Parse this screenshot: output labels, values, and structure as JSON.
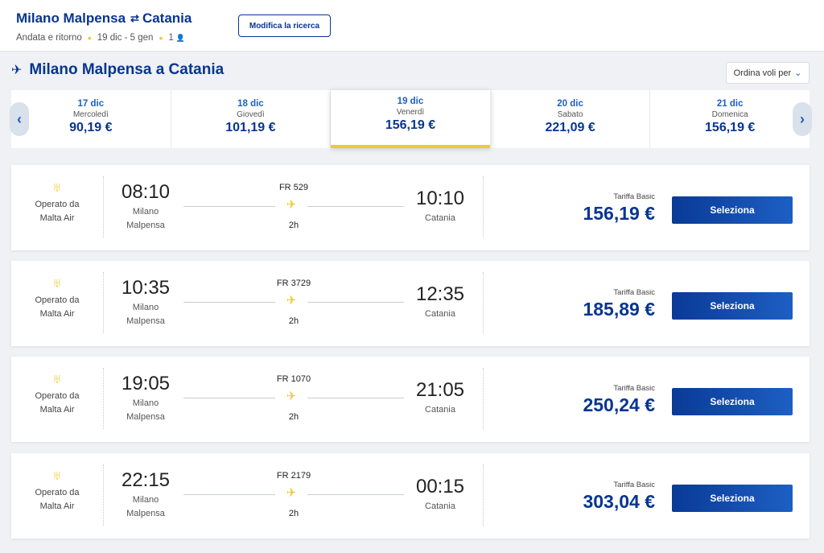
{
  "header": {
    "origin": "Milano Malpensa",
    "arrows_icon": "⇄",
    "destination": "Catania",
    "trip_type": "Andata e ritorno",
    "dates": "19 dic - 5 gen",
    "passengers": "1",
    "person_icon": "👤",
    "modify_label": "Modifica la ricerca"
  },
  "section": {
    "plane_icon": "✈",
    "title": "Milano Malpensa a Catania",
    "sort_label": "Ordina voli per",
    "sort_chevron": "⌄"
  },
  "date_nav": {
    "prev": "‹",
    "next": "›"
  },
  "dates": [
    {
      "date": "17 dic",
      "weekday": "Mercoledì",
      "price": "90,19 €"
    },
    {
      "date": "18 dic",
      "weekday": "Giovedì",
      "price": "101,19 €"
    },
    {
      "date": "19 dic",
      "weekday": "Venerdì",
      "price": "156,19 €"
    },
    {
      "date": "20 dic",
      "weekday": "Sabato",
      "price": "221,09 €"
    },
    {
      "date": "21 dic",
      "weekday": "Domenica",
      "price": "156,19 €"
    }
  ],
  "flights": [
    {
      "operated_1": "Operato da",
      "operated_2": "Malta Air",
      "dep_time": "08:10",
      "dep_city_1": "Milano",
      "dep_city_2": "Malpensa",
      "flight_no": "FR 529",
      "duration": "2h",
      "arr_time": "10:10",
      "arr_city": "Catania",
      "fare": "Tariffa Basic",
      "price": "156,19 €",
      "select": "Seleziona"
    },
    {
      "operated_1": "Operato da",
      "operated_2": "Malta Air",
      "dep_time": "10:35",
      "dep_city_1": "Milano",
      "dep_city_2": "Malpensa",
      "flight_no": "FR 3729",
      "duration": "2h",
      "arr_time": "12:35",
      "arr_city": "Catania",
      "fare": "Tariffa Basic",
      "price": "185,89 €",
      "select": "Seleziona"
    },
    {
      "operated_1": "Operato da",
      "operated_2": "Malta Air",
      "dep_time": "19:05",
      "dep_city_1": "Milano",
      "dep_city_2": "Malpensa",
      "flight_no": "FR 1070",
      "duration": "2h",
      "arr_time": "21:05",
      "arr_city": "Catania",
      "fare": "Tariffa Basic",
      "price": "250,24 €",
      "select": "Seleziona"
    },
    {
      "operated_1": "Operato da",
      "operated_2": "Malta Air",
      "dep_time": "22:15",
      "dep_city_1": "Milano",
      "dep_city_2": "Malpensa",
      "flight_no": "FR 2179",
      "duration": "2h",
      "arr_time": "00:15",
      "arr_city": "Catania",
      "fare": "Tariffa Basic",
      "price": "303,04 €",
      "select": "Seleziona"
    }
  ],
  "icons": {
    "airline_logo": "♅",
    "flight_plane": "✈"
  },
  "colors": {
    "brand_blue": "#073590",
    "accent_yellow": "#f1c933",
    "link_blue": "#1d5fc4"
  }
}
